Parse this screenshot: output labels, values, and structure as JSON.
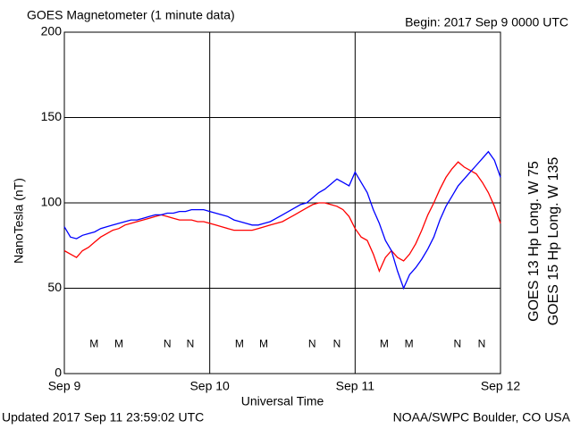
{
  "chart_data": {
    "type": "line",
    "title": "GOES Magnetometer (1 minute data)",
    "subtitle": "Begin:  2017 Sep 9 0000 UTC",
    "y_label": "NanoTesla (nT)",
    "x_label": "Universal Time",
    "footer_left": "Updated 2017 Sep 11 23:59:02 UTC",
    "footer_right": "NOAA/SWPC Boulder, CO USA",
    "xlim": [
      0,
      72
    ],
    "xticks": [
      {
        "value": 0,
        "label": "Sep 9"
      },
      {
        "value": 24,
        "label": "Sep 10"
      },
      {
        "value": 48,
        "label": "Sep 11"
      },
      {
        "value": 72,
        "label": "Sep 12"
      }
    ],
    "ylim": [
      0,
      200
    ],
    "yticks": [
      0,
      50,
      100,
      150,
      200
    ],
    "grid": true,
    "x": [
      0,
      1,
      2,
      3,
      4,
      5,
      6,
      7,
      8,
      9,
      10,
      11,
      12,
      13,
      14,
      15,
      16,
      17,
      18,
      19,
      20,
      21,
      22,
      23,
      24,
      25,
      26,
      27,
      28,
      29,
      30,
      31,
      32,
      33,
      34,
      35,
      36,
      37,
      38,
      39,
      40,
      41,
      42,
      43,
      44,
      45,
      46,
      47,
      48,
      49,
      50,
      51,
      52,
      53,
      54,
      55,
      56,
      57,
      58,
      59,
      60,
      61,
      62,
      63,
      64,
      65,
      66,
      67,
      68,
      69,
      70,
      71,
      72
    ],
    "series": [
      {
        "name": "GOES 13 Hp  Long. W 75",
        "color": "#ff0000",
        "values": [
          72,
          70,
          68,
          72,
          74,
          77,
          80,
          82,
          84,
          85,
          87,
          88,
          89,
          90,
          91,
          92,
          93,
          92,
          91,
          90,
          90,
          90,
          89,
          89,
          88,
          87,
          86,
          85,
          84,
          84,
          84,
          84,
          85,
          86,
          87,
          88,
          89,
          91,
          93,
          95,
          97,
          99,
          100,
          100,
          99,
          98,
          96,
          92,
          85,
          80,
          78,
          70,
          60,
          68,
          72,
          68,
          66,
          70,
          76,
          84,
          93,
          100,
          108,
          115,
          120,
          124,
          121,
          119,
          117,
          112,
          106,
          98,
          88
        ]
      },
      {
        "name": "GOES 15 Hp  Long. W 135",
        "color": "#0000ff",
        "values": [
          86,
          80,
          79,
          81,
          82,
          83,
          85,
          86,
          87,
          88,
          89,
          90,
          90,
          91,
          92,
          93,
          93,
          94,
          94,
          95,
          95,
          96,
          96,
          96,
          95,
          94,
          93,
          92,
          90,
          89,
          88,
          87,
          87,
          88,
          89,
          91,
          93,
          95,
          97,
          99,
          100,
          103,
          106,
          108,
          111,
          114,
          112,
          110,
          118,
          112,
          106,
          96,
          88,
          78,
          72,
          60,
          50,
          58,
          62,
          67,
          73,
          80,
          90,
          98,
          104,
          110,
          114,
          118,
          122,
          126,
          130,
          125,
          115
        ]
      }
    ],
    "annotations": [
      {
        "text": "M",
        "x": 4.9,
        "y": 17,
        "color": "#ff0000"
      },
      {
        "text": "M",
        "x": 9.0,
        "y": 17,
        "color": "#0000ff"
      },
      {
        "text": "N",
        "x": 17.0,
        "y": 17,
        "color": "#ff0000"
      },
      {
        "text": "N",
        "x": 20.8,
        "y": 17,
        "color": "#0000ff"
      },
      {
        "text": "M",
        "x": 28.9,
        "y": 17,
        "color": "#ff0000"
      },
      {
        "text": "M",
        "x": 32.9,
        "y": 17,
        "color": "#0000ff"
      },
      {
        "text": "N",
        "x": 40.9,
        "y": 17,
        "color": "#ff0000"
      },
      {
        "text": "N",
        "x": 45.0,
        "y": 17,
        "color": "#0000ff"
      },
      {
        "text": "M",
        "x": 52.8,
        "y": 17,
        "color": "#ff0000"
      },
      {
        "text": "M",
        "x": 56.9,
        "y": 17,
        "color": "#0000ff"
      },
      {
        "text": "N",
        "x": 64.9,
        "y": 17,
        "color": "#ff0000"
      },
      {
        "text": "N",
        "x": 68.9,
        "y": 17,
        "color": "#0000ff"
      }
    ]
  }
}
